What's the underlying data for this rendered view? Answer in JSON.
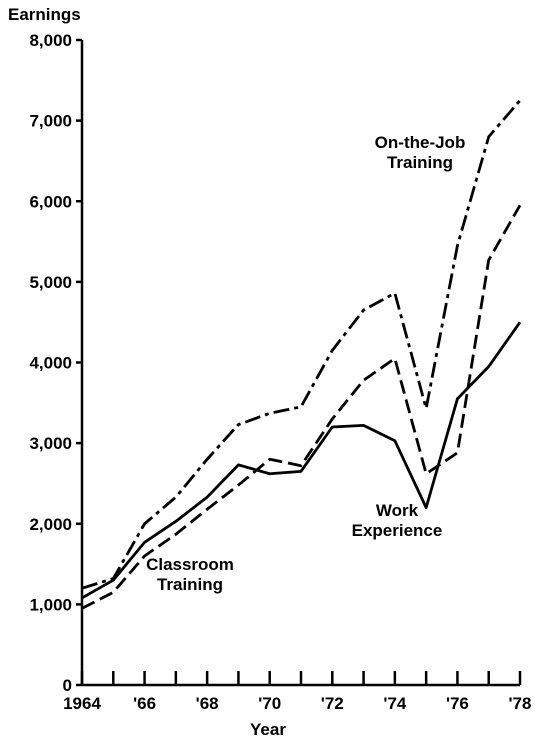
{
  "chart_data": {
    "type": "line",
    "y_label": "Earnings",
    "x_label": "Year",
    "x": [
      1964,
      1965,
      1966,
      1967,
      1968,
      1969,
      1970,
      1971,
      1972,
      1973,
      1974,
      1975,
      1976,
      1977,
      1978
    ],
    "series": [
      {
        "name": "On-the-Job Training",
        "color": "#000000",
        "dash": "dashdot",
        "values": [
          1200,
          1320,
          2000,
          2330,
          2800,
          3230,
          3370,
          3450,
          4150,
          4650,
          4860,
          3430,
          5450,
          6800,
          7250
        ]
      },
      {
        "name": "Classroom Training",
        "color": "#000000",
        "dash": "dashed",
        "values": [
          950,
          1150,
          1600,
          1870,
          2180,
          2480,
          2800,
          2720,
          3300,
          3780,
          4050,
          2620,
          2880,
          5270,
          5950
        ]
      },
      {
        "name": "Work Experience",
        "color": "#000000",
        "dash": "solid",
        "values": [
          1080,
          1300,
          1770,
          2030,
          2330,
          2730,
          2620,
          2650,
          3200,
          3220,
          3030,
          2200,
          3550,
          3950,
          4500
        ]
      }
    ],
    "xlim": [
      1964,
      1978
    ],
    "xticks": [
      {
        "value": 1964,
        "label": "1964"
      },
      {
        "value": 1966,
        "label": "'66"
      },
      {
        "value": 1968,
        "label": "'68"
      },
      {
        "value": 1970,
        "label": "'70"
      },
      {
        "value": 1972,
        "label": "'72"
      },
      {
        "value": 1974,
        "label": "'74"
      },
      {
        "value": 1976,
        "label": "'76"
      },
      {
        "value": 1978,
        "label": "'78"
      }
    ],
    "xminor_ticks": [
      1965,
      1967,
      1969,
      1971,
      1973,
      1975,
      1977
    ],
    "ylim": [
      0,
      8000
    ],
    "yticks": [
      0,
      {
        "value": 1000,
        "label": "1,000"
      },
      {
        "value": 2000,
        "label": "2,000"
      },
      {
        "value": 3000,
        "label": "3,000"
      },
      {
        "value": 4000,
        "label": "4,000"
      },
      {
        "value": 5000,
        "label": "5,000"
      },
      {
        "value": 6000,
        "label": "6,000"
      },
      {
        "value": 7000,
        "label": "7,000"
      },
      {
        "value": 8000,
        "label": "8,000"
      }
    ],
    "grid": false
  }
}
